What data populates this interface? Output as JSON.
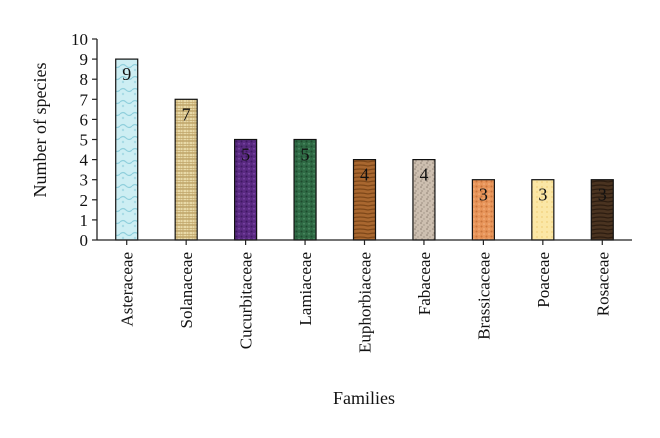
{
  "chart_data": {
    "type": "bar",
    "categories": [
      "Asteraceae",
      "Solanaceae",
      "Cucurbitaceae",
      "Lamiaceae",
      "Euphorbiaceae",
      "Fabaceae",
      "Brassicaceae",
      "Poaceae",
      "Rosaceae"
    ],
    "values": [
      9,
      7,
      5,
      5,
      4,
      4,
      3,
      3,
      3
    ],
    "xlabel": "Families",
    "ylabel": "Number of species",
    "ylim": [
      0,
      10
    ],
    "yticks": [
      0,
      1,
      2,
      3,
      4,
      5,
      6,
      7,
      8,
      9,
      10
    ],
    "grid": false,
    "legend": "none",
    "data_labels": [
      "9",
      "7",
      "5",
      "5",
      "4",
      "4",
      "3",
      "3",
      "3"
    ],
    "bar_colors": [
      "#bfe6ee",
      "#d8c38a",
      "#5a2a82",
      "#2f6b45",
      "#a9672f",
      "#cdbfb0",
      "#e8955a",
      "#fbe7a6",
      "#4a3320"
    ],
    "bar_textures": [
      "water",
      "weave",
      "dots",
      "dots",
      "wood",
      "granite",
      "dots",
      "dots",
      "wood"
    ]
  }
}
